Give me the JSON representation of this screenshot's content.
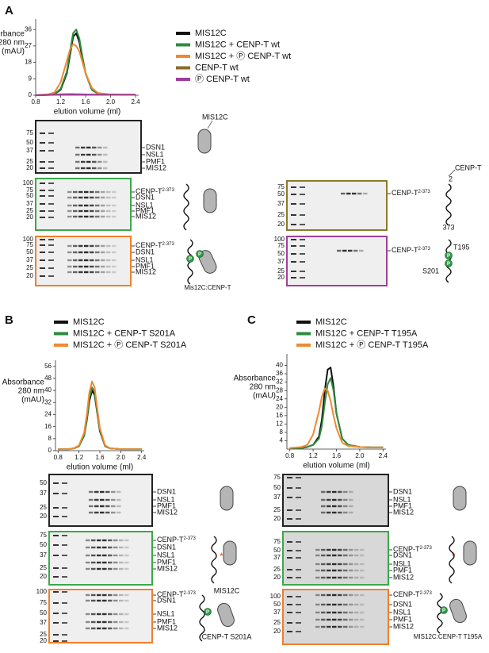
{
  "panel_labels": [
    "A",
    "B",
    "C"
  ],
  "chart_data": [
    {
      "type": "line",
      "ylabel_lines": [
        "Absorbance",
        "280 nm",
        "(mAU)"
      ],
      "xlabel": "elution volume (ml)",
      "x": [
        0.8,
        1.0,
        1.1,
        1.2,
        1.3,
        1.35,
        1.4,
        1.45,
        1.5,
        1.55,
        1.6,
        1.7,
        1.8,
        2.0,
        2.2,
        2.4
      ],
      "xlim": [
        0.8,
        2.45
      ],
      "xticks": [
        0.8,
        1.2,
        1.6,
        {
          "value": 2,
          "label": "2.0"
        },
        2.4
      ],
      "ylim": [
        0,
        40
      ],
      "yticks": [
        0,
        9,
        18,
        27,
        36
      ],
      "series": [
        {
          "name": "MIS12C",
          "color": "#111111",
          "values": [
            0,
            0.2,
            0.5,
            3,
            12,
            22,
            32,
            34,
            29,
            20,
            12,
            3,
            0.8,
            0.3,
            0.2,
            0.2
          ]
        },
        {
          "name": "MIS12C + CENP-T wt",
          "color": "#2e8b3e",
          "values": [
            0,
            0.2,
            0.6,
            3.5,
            13,
            24,
            34,
            36,
            31,
            21,
            12,
            3,
            0.8,
            0.3,
            0.2,
            0.2
          ]
        },
        {
          "name": "MIS12C + Ⓟ CENP-T wt",
          "color": "#f08a30",
          "values": [
            0,
            0.5,
            1.5,
            7,
            19,
            25,
            28,
            27,
            24,
            18,
            12,
            4,
            1.2,
            0.4,
            0.3,
            0.3
          ]
        },
        {
          "name": "CENP-T wt",
          "color": "#8b6a2a",
          "values": [
            0,
            0.2,
            0.3,
            0.5,
            0.6,
            0.6,
            0.6,
            0.5,
            0.5,
            0.5,
            0.4,
            0.3,
            0.3,
            0.3,
            0.3,
            0.3
          ]
        },
        {
          "name": "Ⓟ CENP-T wt",
          "color": "#a03c9c",
          "values": [
            0,
            0.1,
            0.2,
            0.3,
            0.4,
            0.5,
            0.5,
            0.5,
            0.5,
            0.4,
            0.4,
            0.3,
            0.2,
            0.2,
            0.2,
            0.2
          ]
        }
      ]
    },
    {
      "type": "line",
      "ylabel_lines": [
        "Absorbance",
        "280 nm",
        "(mAU)"
      ],
      "xlabel": "elution volume (ml)",
      "x": [
        0.8,
        1.0,
        1.1,
        1.2,
        1.3,
        1.35,
        1.4,
        1.45,
        1.5,
        1.55,
        1.6,
        1.7,
        1.8,
        2.0,
        2.2,
        2.4
      ],
      "xlim": [
        0.75,
        2.45
      ],
      "xticks": [
        0.8,
        1.2,
        1.6,
        {
          "value": 2,
          "label": "2.0"
        },
        2.4
      ],
      "ylim": [
        0,
        58
      ],
      "yticks": [
        0,
        8,
        16,
        24,
        32,
        40,
        48,
        56
      ],
      "series": [
        {
          "name": "MIS12C",
          "color": "#111111",
          "values": [
            1,
            1,
            1.5,
            3,
            10,
            20,
            33,
            40,
            37,
            25,
            13,
            3,
            1.5,
            1,
            1,
            1
          ]
        },
        {
          "name": "MIS12C + CENP-T S201A",
          "color": "#2e8b3e",
          "values": [
            1,
            1,
            1.5,
            3,
            10,
            21,
            35,
            42,
            39,
            26,
            14,
            3,
            1.5,
            1,
            1,
            1
          ]
        },
        {
          "name": "MIS12C + Ⓟ CENP-T S201A",
          "color": "#f08a30",
          "values": [
            1,
            1,
            1.5,
            3.5,
            12,
            24,
            39,
            46,
            42,
            28,
            15,
            3.5,
            1.5,
            1,
            1,
            1
          ]
        }
      ]
    },
    {
      "type": "line",
      "ylabel_lines": [
        "Absorbance",
        "280 nm",
        "(mAU)"
      ],
      "xlabel": "elution volume (ml)",
      "x": [
        0.8,
        1.0,
        1.1,
        1.2,
        1.3,
        1.35,
        1.4,
        1.45,
        1.5,
        1.55,
        1.6,
        1.7,
        1.8,
        2.0,
        2.2,
        2.4
      ],
      "xlim": [
        0.75,
        2.45
      ],
      "xticks": [
        0.8,
        1.2,
        1.6,
        {
          "value": 2,
          "label": "2.0"
        },
        2.4
      ],
      "ylim": [
        0,
        44
      ],
      "yticks": [
        4,
        8,
        12,
        16,
        20,
        24,
        28,
        32,
        36,
        40
      ],
      "series": [
        {
          "name": "MIS12C",
          "color": "#111111",
          "values": [
            0.5,
            0.5,
            1,
            2,
            6,
            14,
            28,
            38,
            39,
            30,
            17,
            5,
            2,
            1,
            0.8,
            0.8
          ]
        },
        {
          "name": "MIS12C + CENP-T T195A",
          "color": "#2e8b3e",
          "values": [
            0.5,
            0.5,
            1,
            2,
            5,
            11,
            22,
            31,
            34,
            28,
            17,
            5,
            2,
            1,
            0.8,
            0.8
          ]
        },
        {
          "name": "MIS12C + Ⓟ CENP-T T195A",
          "color": "#f08a30",
          "values": [
            0.5,
            1,
            2,
            7,
            18,
            25,
            29,
            28,
            23,
            16,
            10,
            3,
            1.5,
            1,
            0.8,
            0.8
          ]
        }
      ]
    }
  ],
  "gels": [
    {
      "mw": [
        "75",
        "50",
        "37",
        "25",
        "20"
      ],
      "bands": [
        "DSN1",
        "NSL1",
        "PMF1",
        "MIS12"
      ]
    },
    {
      "mw": [
        "100",
        "75",
        "50",
        "37",
        "25",
        "20"
      ],
      "bands": [
        {
          "text": "CENP-T",
          "sup": "2-373"
        },
        "DSN1",
        "NSL1",
        "PMF1",
        "MIS12"
      ]
    },
    {
      "mw": [
        "100",
        "75",
        "50",
        "37",
        "25",
        "20"
      ],
      "bands": [
        {
          "text": "CENP-T",
          "sup": "2-373"
        },
        "DSN1",
        "NSL1",
        "PMF1",
        "MIS12"
      ]
    },
    {
      "mw": [
        "75",
        "50",
        "37",
        "25",
        "20"
      ],
      "bands": [
        {
          "text": "CENP-T",
          "sup": "2-373"
        }
      ]
    },
    {
      "mw": [
        "100",
        "75",
        "50",
        "37",
        "25",
        "20"
      ],
      "bands": [
        {
          "text": "CENP-T",
          "sup": "2-373"
        }
      ]
    },
    {
      "mw": [
        "50",
        "37",
        "25",
        "20"
      ],
      "bands": [
        "DSN1",
        "NSL1",
        "PMF1",
        "MIS12"
      ]
    },
    {
      "mw": [
        "75",
        "50",
        "37",
        "25",
        "20"
      ],
      "bands": [
        {
          "text": "CENP-T",
          "sup": "2-373"
        },
        "DSN1",
        "NSL1",
        "PMF1",
        "MIS12"
      ],
      "asterisk": "*"
    },
    {
      "mw": [
        "100",
        "75",
        "50",
        "37",
        "25",
        "20"
      ],
      "bands": [
        {
          "text": "CENP-T",
          "sup": "2-373"
        },
        "DSN1",
        "NSL1",
        "PMF1",
        "MIS12"
      ],
      "asterisk": "*"
    },
    {
      "mw": [
        "75",
        "50",
        "37",
        "25",
        "20"
      ],
      "bands": [
        "DSN1",
        "NSL1",
        "PMF1",
        "MIS12"
      ]
    },
    {
      "mw": [
        "75",
        "50",
        "37",
        "25",
        "20"
      ],
      "bands": [
        {
          "text": "CENP-T",
          "sup": "2-373"
        },
        "DSN1",
        "NSL1",
        "PMF1",
        "MIS12"
      ],
      "asterisk": "*"
    },
    {
      "mw": [
        "100",
        "50",
        "37",
        "25",
        "20"
      ],
      "bands": [
        {
          "text": "CENP-T",
          "sup": "2-373"
        },
        "DSN1",
        "NSL1",
        "PMF1",
        "MIS12"
      ],
      "asterisk": "*"
    }
  ],
  "phospho": "P",
  "annotations": [
    "MIS12C",
    "Mis12C:CENP-T",
    "CENP-T",
    "2",
    "373",
    "T195",
    "S201",
    "MIS12C",
    "CENP-T S201A",
    "MIS12C:CENP-T T195A"
  ]
}
